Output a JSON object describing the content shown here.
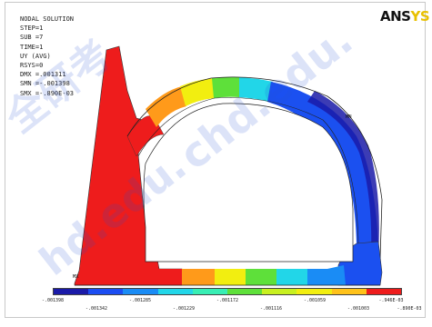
{
  "window": {
    "logo": "ANS",
    "logo_tail": "YS"
  },
  "info": {
    "lines": [
      "NODAL SOLUTION",
      "STEP=1",
      "SUB =7",
      "TIME=1",
      "UY       (AVG)",
      "RSYS=0",
      "DMX =.001311",
      "SMN =-.001398",
      "SMX =-.890E-03"
    ]
  },
  "plot": {
    "label_mn": "MN",
    "label_mx": "MX",
    "colors": {
      "red": "#ee1c1c",
      "orange": "#ff9a1a",
      "yellow": "#f2ee10",
      "green": "#5ee03a",
      "cyan": "#22d6e8",
      "blue": "#1b50f0",
      "navy": "#1a1aa8"
    }
  },
  "legend": {
    "colors": [
      "#1a1aa8",
      "#1b4df2",
      "#1a8cf5",
      "#22d6e8",
      "#38eeb4",
      "#5ee03a",
      "#c8f020",
      "#f2ee10",
      "#ffc21a",
      "#ee1c1c"
    ],
    "top_ticks": [
      "-.001398",
      "-.001285",
      "-.001172",
      "-.001059",
      "-.946E-03"
    ],
    "bottom_ticks": [
      "-.001342",
      "-.001229",
      "-.001116",
      "-.001003",
      "-.890E-03"
    ]
  },
  "watermark": {
    "text_cn": "全研考",
    "text_url": "chd.edu.",
    "text_url2": "hd.edu."
  }
}
